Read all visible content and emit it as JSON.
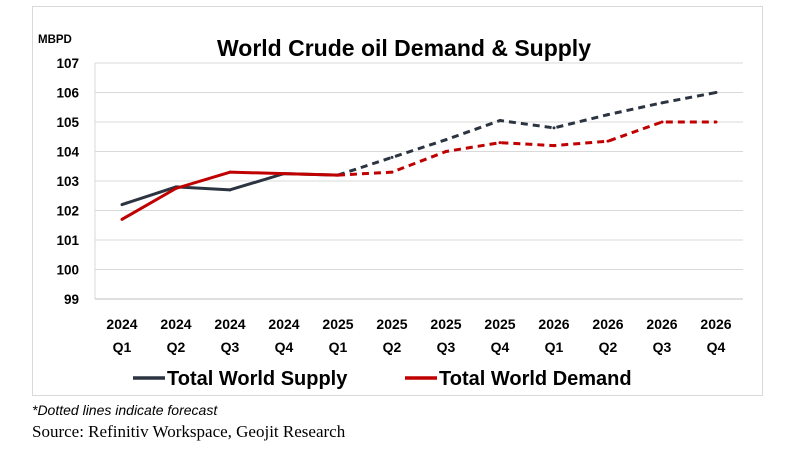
{
  "chart_data": {
    "type": "line",
    "title": "World Crude oil Demand & Supply",
    "ylabel": "MBPD",
    "ylim": [
      99,
      107
    ],
    "yticks": [
      99,
      100,
      101,
      102,
      103,
      104,
      105,
      106,
      107
    ],
    "grid": true,
    "legend_position": "bottom",
    "categories": [
      [
        "2024",
        "Q1"
      ],
      [
        "2024",
        "Q2"
      ],
      [
        "2024",
        "Q3"
      ],
      [
        "2024",
        "Q4"
      ],
      [
        "2025",
        "Q1"
      ],
      [
        "2025",
        "Q2"
      ],
      [
        "2025",
        "Q3"
      ],
      [
        "2025",
        "Q4"
      ],
      [
        "2026",
        "Q1"
      ],
      [
        "2026",
        "Q2"
      ],
      [
        "2026",
        "Q3"
      ],
      [
        "2026",
        "Q4"
      ]
    ],
    "forecast_from_index": 4,
    "series": [
      {
        "name": "Total World Supply",
        "color": "#2b3440",
        "values": [
          102.2,
          102.8,
          102.7,
          103.25,
          103.2,
          103.8,
          104.4,
          105.05,
          104.8,
          105.25,
          105.65,
          106.0
        ]
      },
      {
        "name": "Total World Demand",
        "color": "#c00000",
        "values": [
          101.7,
          102.75,
          103.3,
          103.25,
          103.2,
          103.3,
          104.0,
          104.3,
          104.2,
          104.35,
          105.0,
          105.0
        ]
      }
    ]
  },
  "footnote": "*Dotted lines indicate forecast",
  "source": "Source: Refinitiv Workspace, Geojit Research"
}
